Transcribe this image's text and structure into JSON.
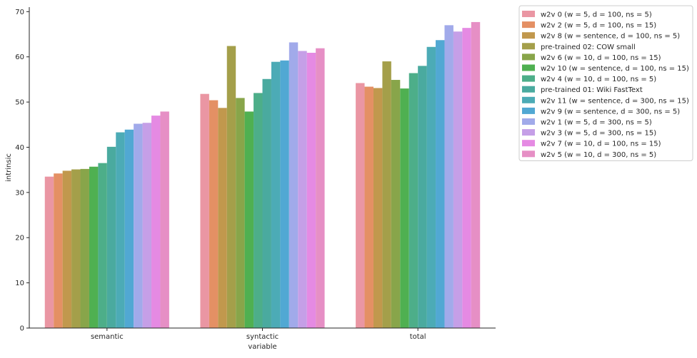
{
  "chart_data": {
    "type": "bar",
    "title": "",
    "xlabel": "variable",
    "ylabel": "intrinsic",
    "ylim": [
      0,
      71
    ],
    "yticks": [
      0,
      10,
      20,
      30,
      40,
      50,
      60,
      70
    ],
    "grid": false,
    "legend_position": "outside-right-top",
    "categories": [
      "semantic",
      "syntactic",
      "total"
    ],
    "series": [
      {
        "name": "w2v 0 (w = 5, d = 100, ns = 5)",
        "color": "#ea96a3",
        "values": [
          33.5,
          51.8,
          54.2
        ]
      },
      {
        "name": "w2v 2 (w = 5, d = 100, ns = 15)",
        "color": "#e49064",
        "values": [
          34.2,
          50.4,
          53.4
        ]
      },
      {
        "name": "w2v 8 (w = sentence, d = 100, ns = 5)",
        "color": "#c1984d",
        "values": [
          34.8,
          48.7,
          53.1
        ]
      },
      {
        "name": "pre-trained 02: COW small",
        "color": "#a49f4a",
        "values": [
          35.1,
          62.4,
          59.0
        ]
      },
      {
        "name": "w2v 6 (w = 10, d = 100, ns = 15)",
        "color": "#88a54a",
        "values": [
          35.2,
          50.9,
          54.9
        ]
      },
      {
        "name": "w2v 10 (w = sentence, d = 100, ns = 15)",
        "color": "#4fb051",
        "values": [
          35.7,
          47.9,
          53.0
        ]
      },
      {
        "name": "w2v 4 (w = 10, d = 100, ns = 5)",
        "color": "#4dae89",
        "values": [
          36.5,
          52.0,
          56.4
        ]
      },
      {
        "name": "pre-trained 01: Wiki FastText",
        "color": "#4aaa9f",
        "values": [
          40.1,
          55.1,
          58.0
        ]
      },
      {
        "name": "w2v 11 (w = sentence, d = 300, ns = 15)",
        "color": "#4cabb6",
        "values": [
          43.3,
          58.9,
          62.2
        ]
      },
      {
        "name": "w2v 9 (w = sentence, d = 300, ns = 5)",
        "color": "#51a8d3",
        "values": [
          43.9,
          59.2,
          63.7
        ]
      },
      {
        "name": "w2v 1 (w = 5, d = 300, ns = 5)",
        "color": "#a1aaea",
        "values": [
          45.2,
          63.2,
          67.0
        ]
      },
      {
        "name": "w2v 3 (w = 5, d = 300, ns = 15)",
        "color": "#c59fe7",
        "values": [
          45.4,
          61.3,
          65.6
        ]
      },
      {
        "name": "w2v 7 (w = 10, d = 100, ns = 15)",
        "color": "#e58ae3",
        "values": [
          47.0,
          60.9,
          66.4
        ]
      },
      {
        "name": "w2v 5 (w = 10, d = 300, ns = 5)",
        "color": "#e68fc5",
        "values": [
          47.9,
          61.9,
          67.7
        ]
      }
    ]
  }
}
